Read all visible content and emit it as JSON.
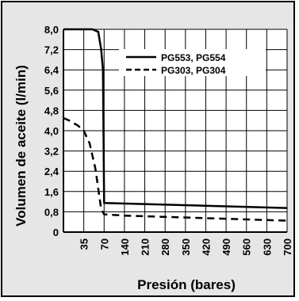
{
  "chart_data": {
    "type": "line",
    "xlabel": "Presión (bares)",
    "ylabel": "Volumen de aceite (l/min)",
    "x_ticks": [
      "35",
      "70",
      "140",
      "210",
      "280",
      "350",
      "420",
      "490",
      "560",
      "630",
      "700"
    ],
    "y_ticks": [
      "0",
      "0,8",
      "1,6",
      "2,4",
      "3,2",
      "4,0",
      "4,8",
      "5,6",
      "6,4",
      "7,2",
      "8,0"
    ],
    "y_tick_values": [
      0,
      0.8,
      1.6,
      2.4,
      3.2,
      4.0,
      4.8,
      5.6,
      6.4,
      7.2,
      8.0
    ],
    "ylim": [
      0,
      8.0
    ],
    "grid": true,
    "legend_position": "top-right",
    "series": [
      {
        "name": "PG553, PG554",
        "style": "solid",
        "x": [
          0,
          35,
          50,
          60,
          65,
          68,
          70,
          700
        ],
        "y": [
          8.0,
          8.0,
          8.0,
          7.9,
          7.2,
          6.4,
          1.15,
          0.95
        ]
      },
      {
        "name": "PG303, PG304",
        "style": "dashed",
        "x": [
          0,
          10,
          25,
          35,
          45,
          55,
          65,
          70,
          140,
          700
        ],
        "y": [
          4.5,
          4.4,
          4.2,
          4.0,
          3.5,
          2.5,
          0.9,
          0.7,
          0.65,
          0.45
        ]
      }
    ]
  }
}
